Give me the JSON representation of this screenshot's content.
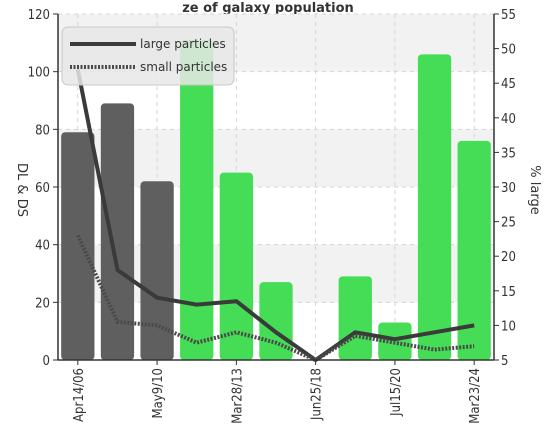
{
  "chart_data": {
    "type": "bar",
    "title": "ze of galaxy population",
    "categories": [
      "Apr14/06",
      "",
      "May9/10",
      "",
      "Mar28/13",
      "",
      "Jun25/18",
      "",
      "Jul15/20",
      "",
      "Mar23/24"
    ],
    "bars": {
      "values": [
        79,
        89,
        62,
        111,
        65,
        27,
        0,
        29,
        13,
        106,
        76
      ],
      "colors": [
        "#5f5f5f",
        "#5f5f5f",
        "#5f5f5f",
        "#44dd55",
        "#44dd55",
        "#44dd55",
        "#44dd55",
        "#44dd55",
        "#44dd55",
        "#44dd55",
        "#44dd55"
      ]
    },
    "series": [
      {
        "name": "large particles",
        "axis": "right",
        "style": "solid",
        "color": "#3a3a3a",
        "values": [
          47,
          18,
          14,
          13,
          13.5,
          9,
          5,
          9,
          8,
          9,
          10
        ]
      },
      {
        "name": "small particles",
        "axis": "right",
        "style": "dotted",
        "color": "#4a4a4a",
        "values": [
          23,
          10.5,
          10,
          7.5,
          9,
          7.5,
          5,
          8.5,
          7.5,
          6.5,
          7
        ]
      }
    ],
    "ylabel": "DL & DS",
    "y2label": "% large",
    "ylim": [
      0,
      120
    ],
    "y2lim": [
      5,
      55
    ],
    "yticks": [
      0,
      20,
      40,
      60,
      80,
      100,
      120
    ],
    "y2ticks": [
      5,
      10,
      15,
      20,
      25,
      30,
      35,
      40,
      45,
      50,
      55
    ],
    "grid": true,
    "legend_position": "top-left"
  },
  "colors": {
    "grid_band": "#f2f2f2",
    "grid_line": "#d6d6d6",
    "axis": "#333333"
  }
}
